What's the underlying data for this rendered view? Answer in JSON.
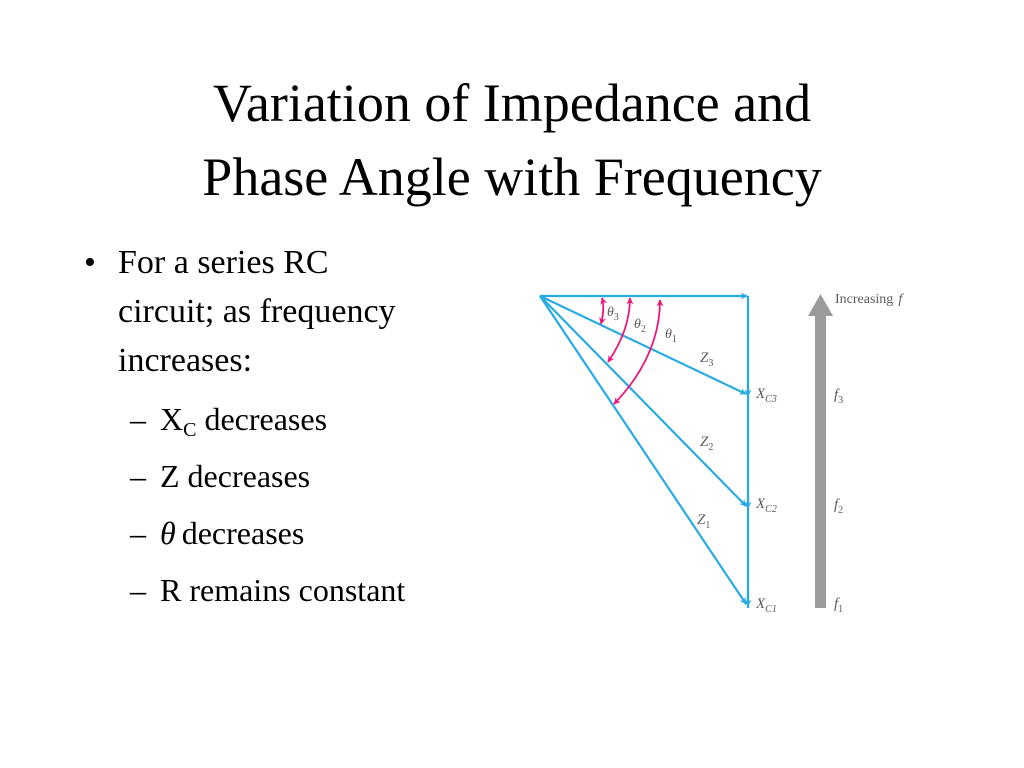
{
  "slide": {
    "title_line1": "Variation of Impedance and",
    "title_line2": "Phase Angle with Frequency",
    "bullet_symbol": "•",
    "main_bullet": [
      "For a series RC",
      "circuit; as frequency",
      "increases:"
    ],
    "sub_dash": "–",
    "sub_items": {
      "xc_main": "X",
      "xc_sub": "C",
      "xc_rest": " decreases",
      "z": "Z decreases",
      "theta_symbol": "θ",
      "theta_rest": "decreases",
      "r": "R remains constant"
    }
  },
  "diagram": {
    "colors": {
      "phasor": "#29ABE2",
      "angle": "#E8197D",
      "arrow": "#9A9B9D",
      "label": "#5b5b5b"
    },
    "increasing_label": "Increasing",
    "increasing_symbol": "f",
    "angles": {
      "theta3_sym": "θ",
      "theta3_sub": "3",
      "theta2_sym": "θ",
      "theta2_sub": "2",
      "theta1_sym": "θ",
      "theta1_sub": "1"
    },
    "impedances": {
      "z3_sym": "Z",
      "z3_sub": "3",
      "z2_sym": "Z",
      "z2_sub": "2",
      "z1_sym": "Z",
      "z1_sub": "1"
    },
    "reactances": {
      "xc3_sym": "X",
      "xc3_sub": "C3",
      "xc2_sym": "X",
      "xc2_sub": "C2",
      "xc1_sym": "X",
      "xc1_sub": "C1"
    },
    "frequencies": {
      "f3_sym": "f",
      "f3_sub": "3",
      "f2_sym": "f",
      "f2_sub": "2",
      "f1_sym": "f",
      "f1_sub": "1"
    }
  }
}
